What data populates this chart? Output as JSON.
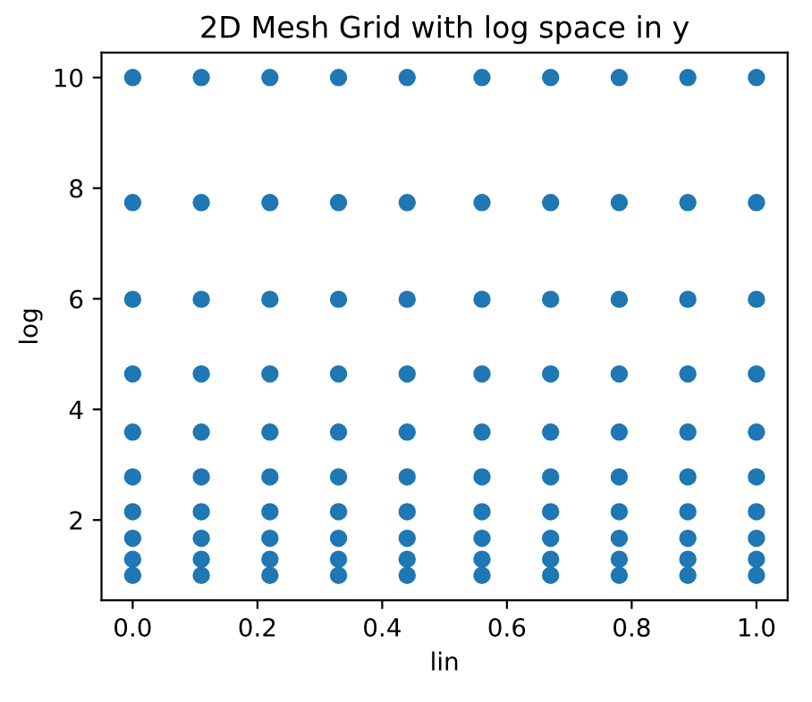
{
  "chart_data": {
    "type": "scatter",
    "title": "2D Mesh Grid with log space in y",
    "xlabel": "lin",
    "ylabel": "log",
    "xlim": [
      -0.05,
      1.05
    ],
    "xticks": [
      {
        "value": 0,
        "label": "0.0"
      },
      {
        "value": 0.2,
        "label": "0.2"
      },
      {
        "value": 0.4,
        "label": "0.4"
      },
      {
        "value": 0.6,
        "label": "0.6"
      },
      {
        "value": 0.8,
        "label": "0.8"
      },
      {
        "value": 1,
        "label": "1.0"
      }
    ],
    "ylim": [
      0.55,
      10.45
    ],
    "yticks": [
      2,
      4,
      6,
      8,
      10
    ],
    "marker": "circle",
    "series": [
      {
        "color": "#1f77b4",
        "x": [
          0,
          0,
          0,
          0,
          0,
          0,
          0,
          0,
          0,
          0,
          0.11,
          0.11,
          0.11,
          0.11,
          0.11,
          0.11,
          0.11,
          0.11,
          0.11,
          0.11,
          0.22,
          0.22,
          0.22,
          0.22,
          0.22,
          0.22,
          0.22,
          0.22,
          0.22,
          0.22,
          0.33,
          0.33,
          0.33,
          0.33,
          0.33,
          0.33,
          0.33,
          0.33,
          0.33,
          0.33,
          0.44,
          0.44,
          0.44,
          0.44,
          0.44,
          0.44,
          0.44,
          0.44,
          0.44,
          0.44,
          0.56,
          0.56,
          0.56,
          0.56,
          0.56,
          0.56,
          0.56,
          0.56,
          0.56,
          0.56,
          0.67,
          0.67,
          0.67,
          0.67,
          0.67,
          0.67,
          0.67,
          0.67,
          0.67,
          0.67,
          0.78,
          0.78,
          0.78,
          0.78,
          0.78,
          0.78,
          0.78,
          0.78,
          0.78,
          0.78,
          0.89,
          0.89,
          0.89,
          0.89,
          0.89,
          0.89,
          0.89,
          0.89,
          0.89,
          0.89,
          1,
          1,
          1,
          1,
          1,
          1,
          1,
          1,
          1,
          1
        ],
        "values": [
          1,
          1.29,
          1.67,
          2.15,
          2.78,
          3.59,
          4.64,
          5.99,
          7.74,
          10,
          1,
          1.29,
          1.67,
          2.15,
          2.78,
          3.59,
          4.64,
          5.99,
          7.74,
          10,
          1,
          1.29,
          1.67,
          2.15,
          2.78,
          3.59,
          4.64,
          5.99,
          7.74,
          10,
          1,
          1.29,
          1.67,
          2.15,
          2.78,
          3.59,
          4.64,
          5.99,
          7.74,
          10,
          1,
          1.29,
          1.67,
          2.15,
          2.78,
          3.59,
          4.64,
          5.99,
          7.74,
          10,
          1,
          1.29,
          1.67,
          2.15,
          2.78,
          3.59,
          4.64,
          5.99,
          7.74,
          10,
          1,
          1.29,
          1.67,
          2.15,
          2.78,
          3.59,
          4.64,
          5.99,
          7.74,
          10,
          1,
          1.29,
          1.67,
          2.15,
          2.78,
          3.59,
          4.64,
          5.99,
          7.74,
          10,
          1,
          1.29,
          1.67,
          2.15,
          2.78,
          3.59,
          4.64,
          5.99,
          7.74,
          10,
          1,
          1.29,
          1.67,
          2.15,
          2.78,
          3.59,
          4.64,
          5.99,
          7.74,
          10
        ]
      }
    ]
  }
}
